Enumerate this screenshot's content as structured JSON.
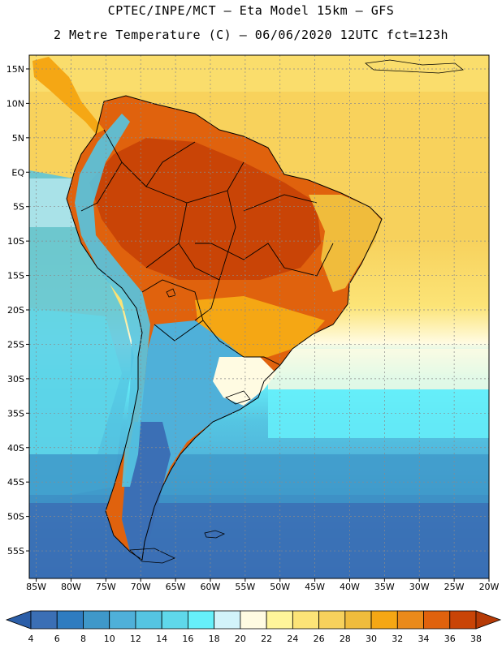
{
  "title": {
    "line1": "CPTEC/INPE/MCT –  Eta Model 15km – GFS",
    "line2": "2 Metre Temperature (C) – 06/06/2020 12UTC fct=123h"
  },
  "map": {
    "lat_ticks": [
      "15N",
      "10N",
      "5N",
      "EQ",
      "5S",
      "10S",
      "15S",
      "20S",
      "25S",
      "30S",
      "35S",
      "40S",
      "45S",
      "50S",
      "55S"
    ],
    "lat_values": [
      15,
      10,
      5,
      0,
      -5,
      -10,
      -15,
      -20,
      -25,
      -30,
      -35,
      -40,
      -45,
      -50,
      -55
    ],
    "lon_ticks": [
      "85W",
      "80W",
      "75W",
      "70W",
      "65W",
      "60W",
      "55W",
      "50W",
      "45W",
      "40W",
      "35W",
      "30W",
      "25W",
      "20W"
    ],
    "lon_values": [
      -85,
      -80,
      -75,
      -70,
      -65,
      -60,
      -55,
      -50,
      -45,
      -40,
      -35,
      -30,
      -25,
      -20
    ],
    "lon_range": [
      -86,
      -20
    ],
    "lat_range": [
      -59,
      17
    ]
  },
  "colorbar": {
    "levels": [
      "4",
      "6",
      "8",
      "10",
      "12",
      "14",
      "16",
      "18",
      "20",
      "22",
      "24",
      "26",
      "28",
      "30",
      "32",
      "34",
      "36",
      "38"
    ],
    "colors": [
      "#3b6fb5",
      "#2f7cc0",
      "#3f98c9",
      "#4fb0d9",
      "#55c5e2",
      "#5fd8ea",
      "#66f0fa",
      "#d2f3fa",
      "#fffbe2",
      "#fff59a",
      "#fce477",
      "#f7d15c",
      "#f0bc3c",
      "#f5a714",
      "#ea8a1a",
      "#e0620d",
      "#c94406"
    ],
    "low_color": "#2b5ea8",
    "high_color": "#b63a06"
  }
}
